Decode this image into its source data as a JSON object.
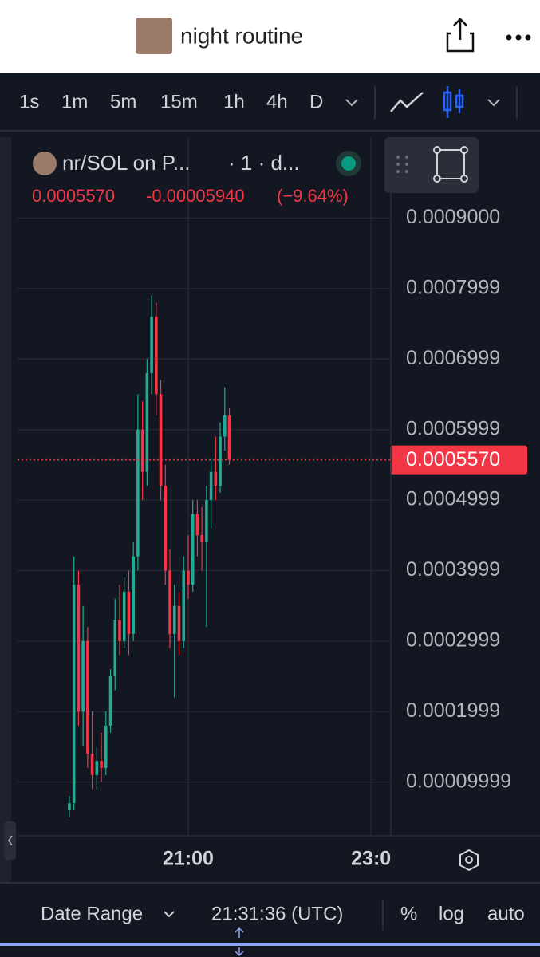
{
  "header": {
    "title": "night routine"
  },
  "toolbar": {
    "intervals": [
      "1s",
      "1m",
      "5m",
      "15m",
      "1h",
      "4h",
      "D"
    ]
  },
  "legend": {
    "symbol": "nr/SOL on P...",
    "interval": "· 1 · d...",
    "last": "0.0005570",
    "change": "-0.00005940",
    "change_pct": "(−9.64%)"
  },
  "chart_data": {
    "type": "candlestick",
    "up_color": "#22ab94",
    "down_color": "#f23645",
    "grid": true,
    "x": [
      1182,
      1185,
      1188,
      1191,
      1194,
      1197,
      1200,
      1203,
      1206,
      1209,
      1212,
      1215,
      1218,
      1221,
      1224,
      1227,
      1230,
      1233,
      1236,
      1239,
      1242,
      1245,
      1248,
      1251,
      1254,
      1257,
      1260,
      1263,
      1266,
      1269,
      1272,
      1275,
      1278,
      1281,
      1284,
      1287
    ],
    "open": [
      6e-05,
      7e-05,
      0.00038,
      0.0002,
      0.0003,
      0.00014,
      0.00011,
      0.00013,
      0.00012,
      0.00018,
      0.00025,
      0.00033,
      0.0003,
      0.00037,
      0.00031,
      0.00042,
      0.0006,
      0.00054,
      0.00068,
      0.00076,
      0.00065,
      0.00052,
      0.0004,
      0.00031,
      0.00035,
      0.0003,
      0.0004,
      0.00038,
      0.00048,
      0.00045,
      0.00044,
      0.0005,
      0.00054,
      0.00052,
      0.00059,
      0.00062
    ],
    "high": [
      8e-05,
      0.00042,
      0.0004,
      0.00035,
      0.00032,
      0.0002,
      0.00015,
      0.00017,
      0.0002,
      0.00026,
      0.00036,
      0.00038,
      0.00039,
      0.0004,
      0.00044,
      0.00065,
      0.00064,
      0.0007,
      0.00079,
      0.00078,
      0.00067,
      0.00055,
      0.00043,
      0.00038,
      0.00037,
      0.00042,
      0.00045,
      0.0005,
      0.0005,
      0.00049,
      0.00052,
      0.00056,
      0.00059,
      0.00061,
      0.00066,
      0.00063
    ],
    "low": [
      5e-05,
      6e-05,
      0.00018,
      0.00015,
      0.00012,
      9e-05,
      9e-05,
      0.0001,
      0.00011,
      0.00017,
      0.00023,
      0.00028,
      0.00029,
      0.00028,
      0.0003,
      0.0004,
      0.0005,
      0.00052,
      0.00065,
      0.00062,
      0.0005,
      0.00038,
      0.00029,
      0.00022,
      0.00028,
      0.00029,
      0.00036,
      0.00037,
      0.00042,
      0.0004,
      0.00032,
      0.00046,
      0.0005,
      0.00051,
      0.00057,
      0.00055
    ],
    "close": [
      7e-05,
      0.00038,
      0.0002,
      0.0003,
      0.00014,
      0.00011,
      0.00013,
      0.00012,
      0.00018,
      0.00025,
      0.00033,
      0.0003,
      0.00037,
      0.00031,
      0.00042,
      0.0006,
      0.00054,
      0.00068,
      0.00076,
      0.00065,
      0.00052,
      0.0004,
      0.00031,
      0.00035,
      0.0003,
      0.0004,
      0.00038,
      0.00048,
      0.00045,
      0.00044,
      0.0005,
      0.00054,
      0.00052,
      0.00059,
      0.00062,
      0.000557
    ],
    "xlim": [
      1148,
      1393
    ],
    "xticks": [
      {
        "value": 1260,
        "label": "21:00"
      },
      {
        "value": 1380,
        "label": "23:0"
      }
    ],
    "ylim": [
      2.38e-05,
      0.0010147
    ],
    "yticks": [
      {
        "value": 9.999e-05,
        "label": "0.00009999"
      },
      {
        "value": 0.0001999,
        "label": "0.0001999"
      },
      {
        "value": 0.0002999,
        "label": "0.0002999"
      },
      {
        "value": 0.0003999,
        "label": "0.0003999"
      },
      {
        "value": 0.0004999,
        "label": "0.0004999"
      },
      {
        "value": 0.0005999,
        "label": "0.0005999"
      },
      {
        "value": 0.0006999,
        "label": "0.0006999"
      },
      {
        "value": 0.0007999,
        "label": "0.0007999"
      },
      {
        "value": 0.0009,
        "label": "0.0009000"
      }
    ],
    "last_price": {
      "value": 0.000557,
      "label": "0.0005570"
    }
  },
  "footer": {
    "date_range": "Date Range",
    "time": "21:31:36 (UTC)",
    "percent": "%",
    "log": "log",
    "auto": "auto"
  }
}
